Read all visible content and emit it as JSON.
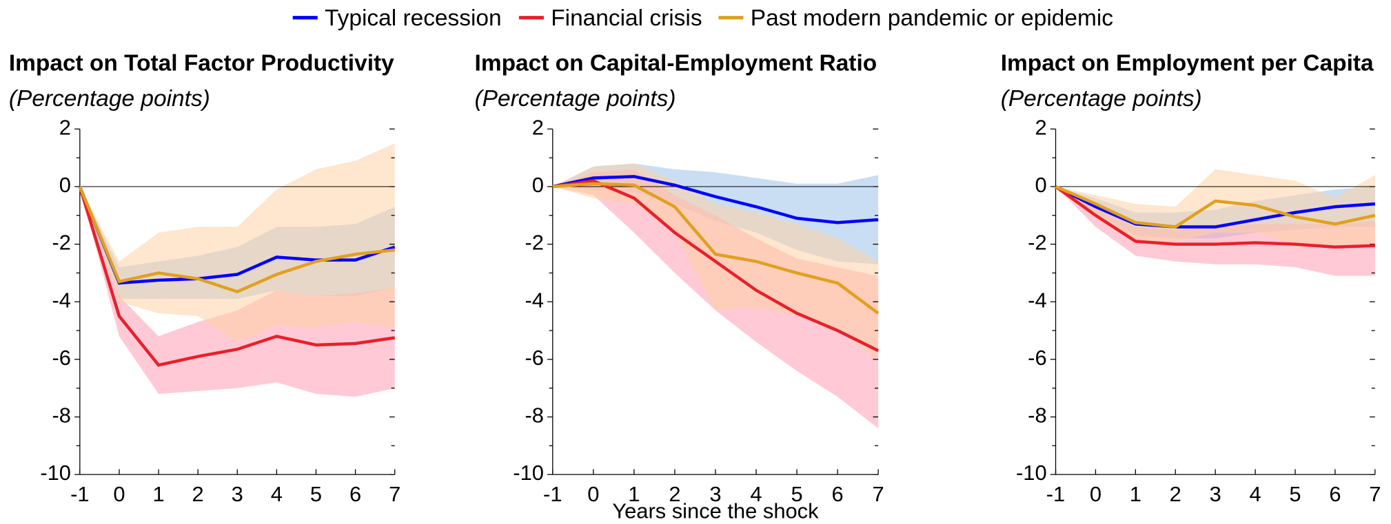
{
  "chart_data": [
    {
      "type": "line",
      "title": "Impact on Total Factor Productivity",
      "subtitle": "(Percentage points)",
      "x": [
        -1,
        0,
        1,
        2,
        3,
        4,
        5,
        6,
        7
      ],
      "xlim": [
        -1,
        7
      ],
      "xticks": [
        -1,
        0,
        1,
        2,
        3,
        4,
        5,
        6,
        7
      ],
      "ylim": [
        -10,
        2
      ],
      "yticks": [
        -10,
        -8,
        -6,
        -4,
        -2,
        0,
        2
      ],
      "yminor": [
        -9,
        -7,
        -5,
        -3,
        -1,
        1
      ],
      "series": [
        {
          "name": "Typical recession",
          "color": "#0000ff",
          "band_color": "#9fc3ea",
          "values": [
            0,
            -3.35,
            -3.25,
            -3.2,
            -3.05,
            -2.45,
            -2.55,
            -2.55,
            -2.1
          ],
          "lower": [
            0,
            -3.9,
            -3.9,
            -3.9,
            -3.9,
            -3.6,
            -3.8,
            -3.8,
            -3.5
          ],
          "upper": [
            0,
            -2.8,
            -2.6,
            -2.4,
            -2.1,
            -1.4,
            -1.4,
            -1.3,
            -0.7
          ]
        },
        {
          "name": "Financial crisis",
          "color": "#e8202a",
          "band_color": "#ff9fb4",
          "values": [
            0,
            -4.5,
            -6.2,
            -5.9,
            -5.65,
            -5.2,
            -5.5,
            -5.45,
            -5.25
          ],
          "lower": [
            0,
            -5.2,
            -7.2,
            -7.1,
            -7.0,
            -6.8,
            -7.2,
            -7.3,
            -7.0
          ],
          "upper": [
            0,
            -3.8,
            -5.2,
            -4.7,
            -4.3,
            -3.6,
            -3.8,
            -3.7,
            -3.5
          ]
        },
        {
          "name": "Past modern pandemic or epidemic",
          "color": "#e0a020",
          "band_color": "#ffd2a6",
          "values": [
            0,
            -3.3,
            -3.0,
            -3.2,
            -3.65,
            -3.05,
            -2.6,
            -2.35,
            -2.2
          ],
          "lower": [
            0,
            -4.0,
            -4.4,
            -4.5,
            -5.4,
            -4.8,
            -4.9,
            -4.7,
            -4.9
          ],
          "upper": [
            0,
            -2.6,
            -1.6,
            -1.4,
            -1.4,
            -0.1,
            0.6,
            0.9,
            1.5
          ]
        }
      ]
    },
    {
      "type": "line",
      "title": "Impact on Capital-Employment Ratio",
      "subtitle": "(Percentage points)",
      "xlabel": "Years since the shock",
      "x": [
        -1,
        0,
        1,
        2,
        3,
        4,
        5,
        6,
        7
      ],
      "xlim": [
        -1,
        7
      ],
      "xticks": [
        -1,
        0,
        1,
        2,
        3,
        4,
        5,
        6,
        7
      ],
      "ylim": [
        -10,
        2
      ],
      "yticks": [
        -10,
        -8,
        -6,
        -4,
        -2,
        0,
        2
      ],
      "yminor": [
        -9,
        -7,
        -5,
        -3,
        -1,
        1
      ],
      "series": [
        {
          "name": "Typical recession",
          "color": "#0000ff",
          "band_color": "#9fc3ea",
          "values": [
            0,
            0.3,
            0.35,
            0.05,
            -0.35,
            -0.7,
            -1.1,
            -1.25,
            -1.15
          ],
          "lower": [
            0,
            -0.1,
            -0.2,
            -0.6,
            -1.2,
            -1.6,
            -2.2,
            -2.6,
            -2.7
          ],
          "upper": [
            0,
            0.7,
            0.8,
            0.6,
            0.5,
            0.3,
            0.1,
            0.1,
            0.4
          ]
        },
        {
          "name": "Financial crisis",
          "color": "#e8202a",
          "band_color": "#ff9fb4",
          "values": [
            0,
            0.2,
            -0.4,
            -1.6,
            -2.6,
            -3.6,
            -4.4,
            -5.0,
            -5.7
          ],
          "lower": [
            0,
            -0.3,
            -1.6,
            -3.0,
            -4.3,
            -5.4,
            -6.4,
            -7.3,
            -8.4
          ],
          "upper": [
            0,
            0.5,
            0.6,
            -0.3,
            -1.0,
            -1.8,
            -2.5,
            -2.8,
            -3.1
          ]
        },
        {
          "name": "Past modern pandemic or epidemic",
          "color": "#e0a020",
          "band_color": "#ffd2a6",
          "values": [
            0,
            0.1,
            0.05,
            -0.7,
            -2.35,
            -2.6,
            -3.0,
            -3.35,
            -4.4
          ],
          "lower": [
            0,
            -0.4,
            -0.6,
            -1.6,
            -4.3,
            -4.2,
            -4.5,
            -5.0,
            -6.0
          ],
          "upper": [
            0,
            0.7,
            0.8,
            0.2,
            -0.6,
            -0.9,
            -1.3,
            -1.8,
            -2.6
          ]
        }
      ]
    },
    {
      "type": "line",
      "title": "Impact on Employment per Capita",
      "subtitle": "(Percentage points)",
      "x": [
        -1,
        0,
        1,
        2,
        3,
        4,
        5,
        6,
        7
      ],
      "xlim": [
        -1,
        7
      ],
      "xticks": [
        -1,
        0,
        1,
        2,
        3,
        4,
        5,
        6,
        7
      ],
      "ylim": [
        -10,
        2
      ],
      "yticks": [
        -10,
        -8,
        -6,
        -4,
        -2,
        0,
        2
      ],
      "yminor": [
        -9,
        -7,
        -5,
        -3,
        -1,
        1
      ],
      "series": [
        {
          "name": "Typical recession",
          "color": "#0000ff",
          "band_color": "#9fc3ea",
          "values": [
            0,
            -0.7,
            -1.3,
            -1.4,
            -1.4,
            -1.15,
            -0.9,
            -0.7,
            -0.6
          ],
          "lower": [
            0,
            -0.9,
            -1.7,
            -1.8,
            -1.8,
            -1.6,
            -1.5,
            -1.4,
            -1.4
          ],
          "upper": [
            0,
            -0.4,
            -0.9,
            -0.9,
            -0.8,
            -0.5,
            -0.3,
            -0.1,
            0.0
          ]
        },
        {
          "name": "Financial crisis",
          "color": "#e8202a",
          "band_color": "#ff9fb4",
          "values": [
            0,
            -1.0,
            -1.9,
            -2.0,
            -2.0,
            -1.95,
            -2.0,
            -2.1,
            -2.05
          ],
          "lower": [
            0,
            -1.4,
            -2.4,
            -2.6,
            -2.7,
            -2.7,
            -2.8,
            -3.1,
            -3.1
          ],
          "upper": [
            0,
            -0.7,
            -1.4,
            -1.5,
            -1.4,
            -1.3,
            -1.3,
            -1.3,
            -1.2
          ]
        },
        {
          "name": "Past modern pandemic or epidemic",
          "color": "#e0a020",
          "band_color": "#ffd2a6",
          "values": [
            0,
            -0.6,
            -1.25,
            -1.4,
            -0.5,
            -0.65,
            -1.05,
            -1.3,
            -1.0
          ],
          "lower": [
            0,
            -1.1,
            -1.9,
            -1.9,
            -1.6,
            -1.6,
            -2.0,
            -2.1,
            -2.0
          ],
          "upper": [
            0,
            -0.3,
            -0.6,
            -0.7,
            0.6,
            0.4,
            0.2,
            -0.4,
            0.4
          ]
        }
      ]
    }
  ]
}
